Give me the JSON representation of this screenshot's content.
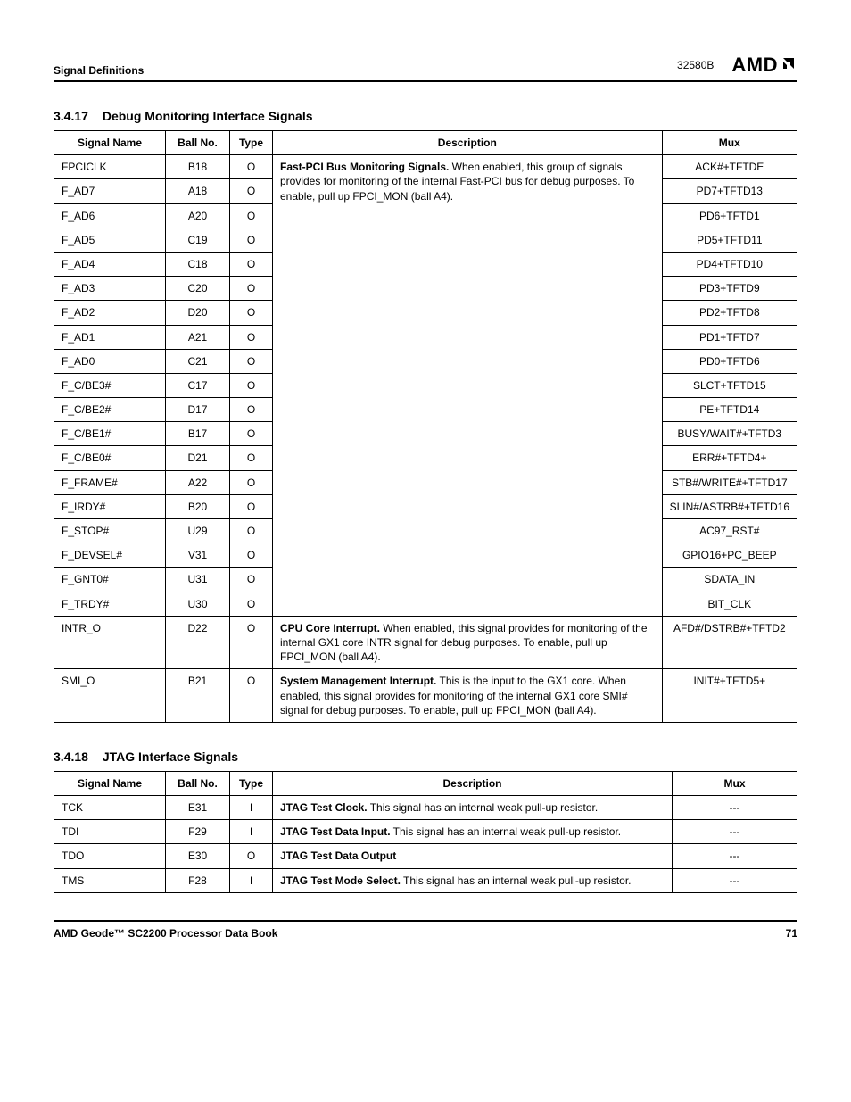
{
  "header": {
    "section_label": "Signal Definitions",
    "doc_id": "32580B",
    "logo_text": "AMD"
  },
  "sections": [
    {
      "number": "3.4.17",
      "title": "Debug Monitoring Interface Signals",
      "columns": [
        "Signal Name",
        "Ball No.",
        "Type",
        "Description",
        "Mux"
      ],
      "desc_group1_title": "Fast-PCI Bus Monitoring Signals.",
      "desc_group1_body": " When enabled, this group of signals provides for monitoring of the internal Fast-PCI bus for debug purposes. To enable, pull up FPCI_MON (ball A4).",
      "rows_group1": [
        {
          "signal": "FPCICLK",
          "ball": "B18",
          "type": "O",
          "mux": "ACK#+TFTDE"
        },
        {
          "signal": "F_AD7",
          "ball": "A18",
          "type": "O",
          "mux": "PD7+TFTD13"
        },
        {
          "signal": "F_AD6",
          "ball": "A20",
          "type": "O",
          "mux": "PD6+TFTD1"
        },
        {
          "signal": "F_AD5",
          "ball": "C19",
          "type": "O",
          "mux": "PD5+TFTD11"
        },
        {
          "signal": "F_AD4",
          "ball": "C18",
          "type": "O",
          "mux": "PD4+TFTD10"
        },
        {
          "signal": "F_AD3",
          "ball": "C20",
          "type": "O",
          "mux": "PD3+TFTD9"
        },
        {
          "signal": "F_AD2",
          "ball": "D20",
          "type": "O",
          "mux": "PD2+TFTD8"
        },
        {
          "signal": "F_AD1",
          "ball": "A21",
          "type": "O",
          "mux": "PD1+TFTD7"
        },
        {
          "signal": "F_AD0",
          "ball": "C21",
          "type": "O",
          "mux": "PD0+TFTD6"
        },
        {
          "signal": "F_C/BE3#",
          "ball": "C17",
          "type": "O",
          "mux": "SLCT+TFTD15"
        },
        {
          "signal": "F_C/BE2#",
          "ball": "D17",
          "type": "O",
          "mux": "PE+TFTD14"
        },
        {
          "signal": "F_C/BE1#",
          "ball": "B17",
          "type": "O",
          "mux": "BUSY/WAIT#+TFTD3"
        },
        {
          "signal": "F_C/BE0#",
          "ball": "D21",
          "type": "O",
          "mux": "ERR#+TFTD4+"
        },
        {
          "signal": "F_FRAME#",
          "ball": "A22",
          "type": "O",
          "mux": "STB#/WRITE#+TFTD17"
        },
        {
          "signal": "F_IRDY#",
          "ball": "B20",
          "type": "O",
          "mux": "SLIN#/ASTRB#+TFTD16"
        },
        {
          "signal": "F_STOP#",
          "ball": "U29",
          "type": "O",
          "mux": "AC97_RST#"
        },
        {
          "signal": "F_DEVSEL#",
          "ball": "V31",
          "type": "O",
          "mux": "GPIO16+PC_BEEP"
        },
        {
          "signal": "F_GNT0#",
          "ball": "U31",
          "type": "O",
          "mux": "SDATA_IN"
        },
        {
          "signal": "F_TRDY#",
          "ball": "U30",
          "type": "O",
          "mux": "BIT_CLK"
        }
      ],
      "rows_own": [
        {
          "signal": "INTR_O",
          "ball": "D22",
          "type": "O",
          "desc_title": "CPU Core Interrupt.",
          "desc_body": " When enabled, this signal provides for monitoring of the internal GX1 core INTR signal for debug purposes. To enable, pull up FPCI_MON (ball A4).",
          "mux": "AFD#/DSTRB#+TFTD2"
        },
        {
          "signal": "SMI_O",
          "ball": "B21",
          "type": "O",
          "desc_title": "System Management Interrupt.",
          "desc_body": " This is the input to the GX1 core. When enabled, this signal provides for monitoring of the internal GX1 core SMI# signal for debug purposes. To enable, pull up FPCI_MON (ball A4).",
          "mux": "INIT#+TFTD5+"
        }
      ]
    },
    {
      "number": "3.4.18",
      "title": "JTAG Interface Signals",
      "columns": [
        "Signal Name",
        "Ball No.",
        "Type",
        "Description",
        "Mux"
      ],
      "rows": [
        {
          "signal": "TCK",
          "ball": "E31",
          "type": "I",
          "desc_title": "JTAG Test Clock.",
          "desc_body": " This signal has an internal weak pull-up resistor.",
          "mux": "---"
        },
        {
          "signal": "TDI",
          "ball": "F29",
          "type": "I",
          "desc_title": "JTAG Test Data Input.",
          "desc_body": " This signal has an internal weak pull-up resistor.",
          "mux": "---"
        },
        {
          "signal": "TDO",
          "ball": "E30",
          "type": "O",
          "desc_title": "JTAG Test Data Output",
          "desc_body": "",
          "mux": "---"
        },
        {
          "signal": "TMS",
          "ball": "F28",
          "type": "I",
          "desc_title": "JTAG Test Mode Select.",
          "desc_body": " This signal has an internal weak pull-up resistor.",
          "mux": "---"
        }
      ]
    }
  ],
  "footer": {
    "left": "AMD Geode™ SC2200  Processor Data Book",
    "page": "71"
  }
}
